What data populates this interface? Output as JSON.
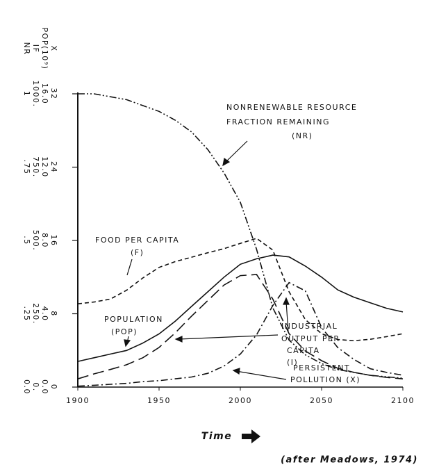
{
  "chart_data": {
    "type": "line",
    "x_label": "Time",
    "credit": "(after Meadows, 1974)",
    "xlim": [
      1900,
      2100
    ],
    "xticks": [
      1900,
      1950,
      2000,
      2050,
      2100
    ],
    "x": [
      1900,
      1910,
      1920,
      1930,
      1940,
      1950,
      1960,
      1970,
      1980,
      1990,
      2000,
      2010,
      2020,
      2030,
      2040,
      2050,
      2060,
      2070,
      2080,
      2090,
      2100
    ],
    "yaxes": [
      {
        "name": "NR",
        "lim": [
          0,
          1
        ],
        "ticks": [
          {
            "value": 0,
            "label": "0.0"
          },
          {
            "value": 0.25,
            "label": ".25"
          },
          {
            "value": 0.5,
            "label": ".5"
          },
          {
            "value": 0.75,
            "label": ".75"
          },
          1
        ]
      },
      {
        "name": "IF",
        "lim": [
          0,
          1000
        ],
        "ticks": [
          {
            "value": 0,
            "label": "0."
          },
          {
            "value": 250,
            "label": "250."
          },
          {
            "value": 500,
            "label": "500."
          },
          {
            "value": 750,
            "label": "750."
          },
          {
            "value": 1000,
            "label": "1000."
          }
        ]
      },
      {
        "name": "POP(10⁹)",
        "lim": [
          0,
          16
        ],
        "ticks": [
          {
            "value": 0,
            "label": "0.0"
          },
          {
            "value": 4,
            "label": "4.0"
          },
          {
            "value": 8,
            "label": "8.0"
          },
          {
            "value": 12,
            "label": "12.0"
          },
          {
            "value": 16,
            "label": "16.0"
          }
        ]
      },
      {
        "name": "X",
        "lim": [
          0,
          32
        ],
        "ticks": [
          0,
          8,
          16,
          24,
          32
        ]
      }
    ],
    "series": [
      {
        "name": "NR",
        "axis": 0,
        "color": "#111",
        "style": "dash-dot-dot",
        "values": [
          1.0,
          1.0,
          0.99,
          0.98,
          0.96,
          0.94,
          0.91,
          0.87,
          0.81,
          0.73,
          0.63,
          0.47,
          0.27,
          0.16,
          0.11,
          0.08,
          0.06,
          0.05,
          0.04,
          0.035,
          0.03
        ]
      },
      {
        "name": "F",
        "axis": 1,
        "color": "#111",
        "style": "short-dash",
        "values": [
          284,
          290,
          300,
          330,
          372,
          408,
          428,
          443,
          458,
          472,
          490,
          507,
          467,
          325,
          230,
          182,
          162,
          158,
          163,
          172,
          182
        ]
      },
      {
        "name": "POP",
        "axis": 2,
        "color": "#111",
        "style": "solid",
        "values": [
          1.4,
          1.6,
          1.8,
          2.0,
          2.4,
          2.9,
          3.6,
          4.4,
          5.2,
          6.0,
          6.7,
          7.0,
          7.2,
          7.1,
          6.6,
          6.0,
          5.3,
          4.9,
          4.6,
          4.3,
          4.1
        ]
      },
      {
        "name": "I",
        "axis": 1,
        "color": "#111",
        "style": "long-dash",
        "values": [
          28,
          45,
          60,
          76,
          100,
          135,
          185,
          242,
          295,
          348,
          380,
          384,
          300,
          182,
          123,
          90,
          64,
          50,
          40,
          33,
          28
        ]
      },
      {
        "name": "X",
        "axis": 3,
        "color": "#111",
        "style": "dash-dot",
        "values": [
          0.1,
          0.2,
          0.3,
          0.4,
          0.6,
          0.7,
          0.9,
          1.1,
          1.5,
          2.3,
          3.6,
          5.7,
          8.9,
          11.4,
          10.5,
          6.5,
          4.3,
          3.0,
          2.0,
          1.6,
          1.3
        ]
      }
    ],
    "annotations": [
      [
        "NONRENEWABLE RESOURCE",
        "FRACTION REMAINING",
        "(NR)"
      ],
      [
        "FOOD PER CAPITA",
        "(F)"
      ],
      [
        "POPULATION",
        "(POP)"
      ],
      [
        "INDUSTRIAL",
        "OUTPUT PER",
        "CAPITA",
        "(I)"
      ],
      [
        "PERSISTENT",
        "POLLUTION (X)"
      ]
    ]
  }
}
